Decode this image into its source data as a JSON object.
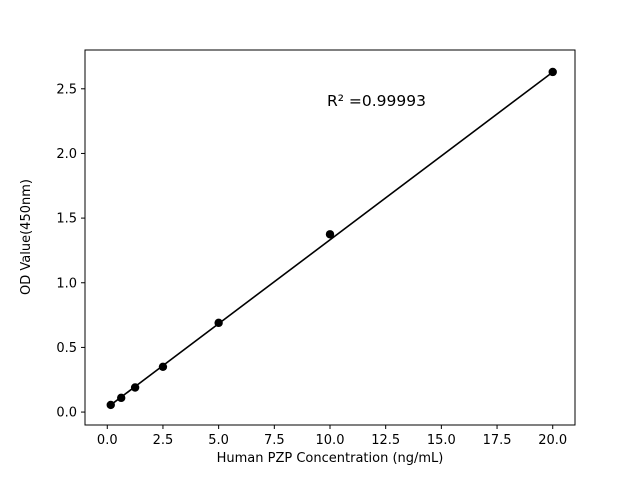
{
  "figure": {
    "background": "#ffffff"
  },
  "chart_data": {
    "type": "scatter",
    "title": "",
    "xlabel": "Human PZP Concentration (ng/mL)",
    "ylabel": "OD Value(450nm)",
    "xlim": [
      -1,
      21
    ],
    "ylim": [
      -0.1,
      2.8
    ],
    "xticks": [
      0.0,
      2.5,
      5.0,
      7.5,
      10.0,
      12.5,
      15.0,
      17.5,
      20.0
    ],
    "xtick_labels": [
      "0.0",
      "2.5",
      "5.0",
      "7.5",
      "10.0",
      "12.5",
      "15.0",
      "17.5",
      "20.0"
    ],
    "yticks": [
      0.0,
      0.5,
      1.0,
      1.5,
      2.0,
      2.5
    ],
    "ytick_labels": [
      "0.0",
      "0.5",
      "1.0",
      "1.5",
      "2.0",
      "2.5"
    ],
    "grid": false,
    "legend": null,
    "marker_color": "#000000",
    "line_color": "#000000",
    "points": [
      {
        "x": 0.156,
        "y": 0.055
      },
      {
        "x": 0.625,
        "y": 0.11
      },
      {
        "x": 1.25,
        "y": 0.19
      },
      {
        "x": 2.5,
        "y": 0.35
      },
      {
        "x": 5.0,
        "y": 0.69
      },
      {
        "x": 10.0,
        "y": 1.375
      },
      {
        "x": 20.0,
        "y": 2.63
      }
    ],
    "fit_line": {
      "x_start": 0.156,
      "x_end": 20.0,
      "slope": 0.1297,
      "intercept": 0.035
    },
    "annotation": {
      "text": "R² =0.99993",
      "x": 9.9,
      "y": 2.4
    }
  }
}
